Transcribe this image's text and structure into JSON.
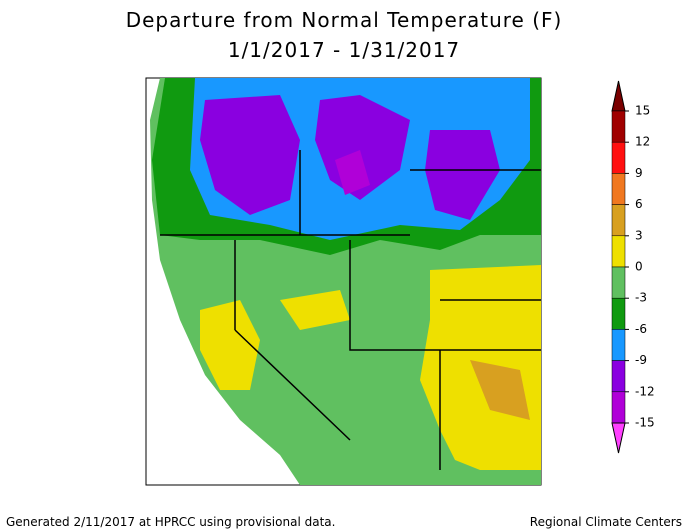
{
  "chart_data": {
    "type": "map",
    "title": "Departure from Normal Temperature (F)",
    "subtitle": "1/1/2017 - 1/31/2017",
    "legend": {
      "ticks": [
        15,
        12,
        9,
        6,
        3,
        0,
        -3,
        -6,
        -9,
        -12,
        -15
      ],
      "colors": [
        "#7a0000",
        "#a00000",
        "#ff1010",
        "#f07820",
        "#d8a020",
        "#eee000",
        "#60c060",
        "#109a10",
        "#1898ff",
        "#8a00e0",
        "#b000d8",
        "#ff40ff"
      ]
    },
    "footer_left": "Generated 2/11/2017 at HPRCC using provisional data.",
    "footer_right": "Regional Climate Centers"
  }
}
